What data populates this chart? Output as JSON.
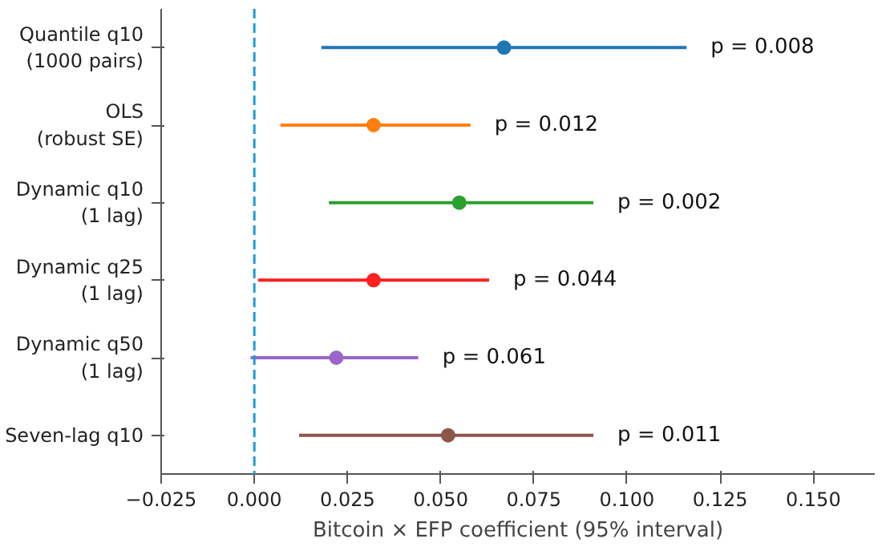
{
  "chart_data": {
    "type": "scatter",
    "orientation": "horizontal",
    "xlabel": "Bitcoin × EFP coefficient (95% interval)",
    "categories": [
      "Quantile q10\n(1000 pairs)",
      "OLS\n(robust SE)",
      "Dynamic q10\n(1 lag)",
      "Dynamic q25\n(1 lag)",
      "Dynamic q50\n(1 lag)",
      "Seven-lag q10"
    ],
    "values": [
      0.067,
      0.032,
      0.055,
      0.032,
      0.022,
      0.052
    ],
    "errors": [
      [
        0.018,
        0.116
      ],
      [
        0.007,
        0.058
      ],
      [
        0.02,
        0.091
      ],
      [
        0.001,
        0.063
      ],
      [
        -0.001,
        0.044
      ],
      [
        0.012,
        0.091
      ]
    ],
    "colors": [
      "#1f77b4",
      "#ff7f0e",
      "#2ca02c",
      "#ff2020",
      "#9a66c8",
      "#8c564b"
    ],
    "marker": "circle",
    "annotations": [
      "p = 0.008",
      "p = 0.012",
      "p = 0.002",
      "p = 0.044",
      "p = 0.061",
      "p = 0.011"
    ],
    "xlim": [
      -0.025,
      0.1665
    ],
    "xticks": [
      {
        "value": -0.025,
        "label": "−0.025"
      },
      {
        "value": 0,
        "label": "0.000"
      },
      {
        "value": 0.025,
        "label": "0.025"
      },
      {
        "value": 0.05,
        "label": "0.050"
      },
      {
        "value": 0.075,
        "label": "0.075"
      },
      {
        "value": 0.1,
        "label": "0.100"
      },
      {
        "value": 0.125,
        "label": "0.125"
      },
      {
        "value": 0.15,
        "label": "0.150"
      }
    ],
    "ref_lines": [
      {
        "axis": "x",
        "value": 0,
        "color": "#1f9bd6",
        "line_style": "dashed"
      }
    ],
    "grid": false
  }
}
